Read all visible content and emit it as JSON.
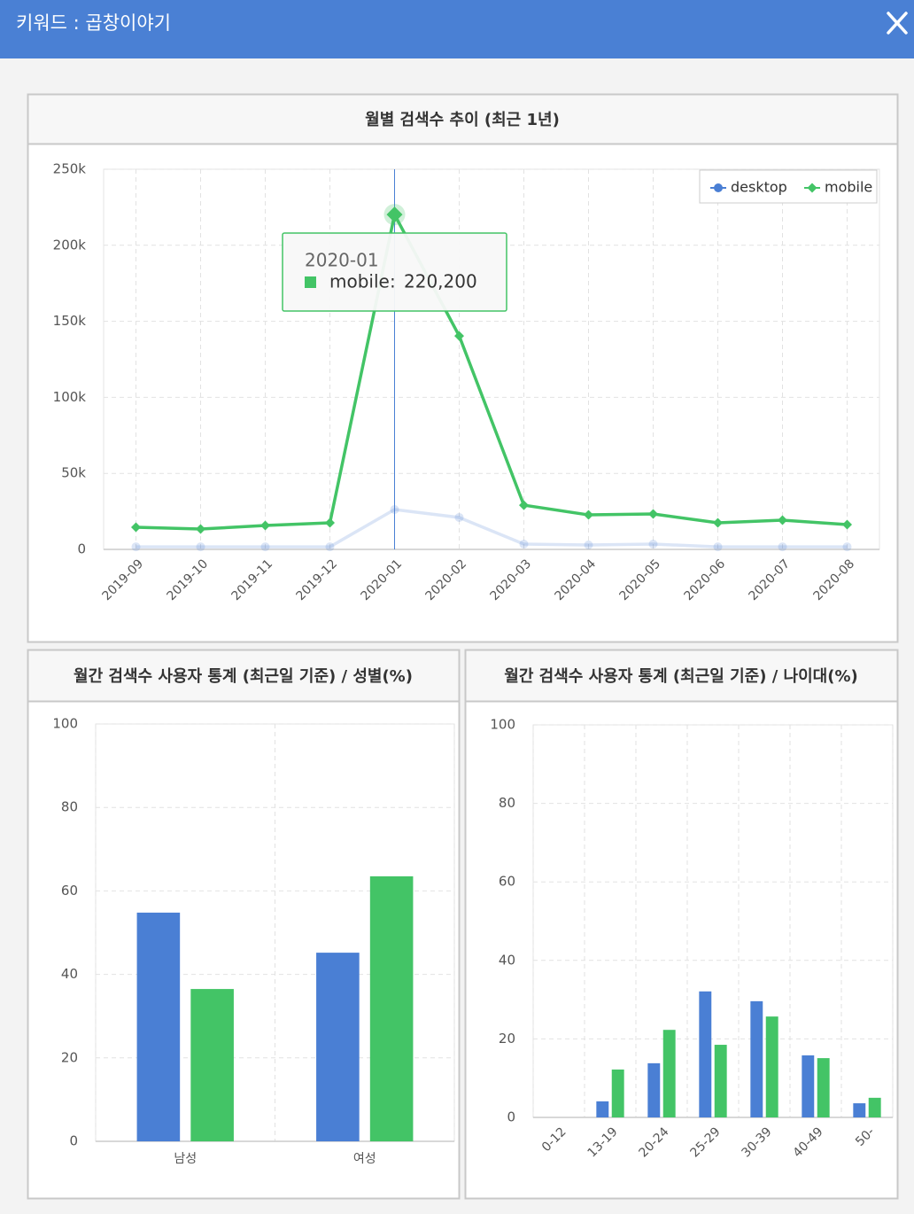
{
  "header": {
    "title": "키워드 : 곱창이야기"
  },
  "chart_data": [
    {
      "type": "line",
      "title": "월별 검색수 추이 (최근 1년)",
      "categories": [
        "2019-09",
        "2019-10",
        "2019-11",
        "2019-12",
        "2020-01",
        "2020-02",
        "2020-03",
        "2020-04",
        "2020-05",
        "2020-06",
        "2020-07",
        "2020-08"
      ],
      "series": [
        {
          "name": "desktop",
          "color": "#4a7fd4",
          "values": [
            1700,
            1700,
            1700,
            1700,
            26200,
            21000,
            3500,
            2900,
            3500,
            1700,
            1700,
            1700
          ]
        },
        {
          "name": "mobile",
          "color": "#43c466",
          "values": [
            14600,
            13400,
            15700,
            17500,
            220200,
            140400,
            29100,
            22700,
            23300,
            17500,
            19200,
            16300
          ]
        }
      ],
      "ylim": [
        0,
        250000
      ],
      "yticks": [
        0,
        {
          "value": 50000,
          "label": "50k"
        },
        {
          "value": 100000,
          "label": "100k"
        },
        {
          "value": 150000,
          "label": "150k"
        },
        {
          "value": 200000,
          "label": "200k"
        },
        {
          "value": 250000,
          "label": "250k"
        }
      ],
      "grid": true,
      "legend": "upper right",
      "tooltip": {
        "category": "2020-01",
        "series": "mobile",
        "separator": ":",
        "value_label": "220,200"
      }
    },
    {
      "type": "bar",
      "title": "월간 검색수 사용자 통계 (최근일 기준) / 성별(%)",
      "categories": [
        "남성",
        "여성"
      ],
      "series": [
        {
          "color": "#4a7fd4",
          "values": [
            54.8,
            45.2
          ]
        },
        {
          "color": "#43c466",
          "values": [
            36.5,
            63.5
          ]
        }
      ],
      "ylim": [
        0,
        100
      ],
      "yticks": [
        0,
        20,
        40,
        60,
        80,
        100
      ],
      "grid": true
    },
    {
      "type": "bar",
      "title": "월간 검색수 사용자 통계 (최근일 기준) / 나이대(%)",
      "categories": [
        "0-12",
        "13-19",
        "20-24",
        "25-29",
        "30-39",
        "40-49",
        "50-"
      ],
      "series": [
        {
          "color": "#4a7fd4",
          "values": [
            0,
            4.1,
            13.8,
            32.1,
            29.6,
            15.8,
            3.6
          ]
        },
        {
          "color": "#43c466",
          "values": [
            0,
            12.2,
            22.3,
            18.5,
            25.7,
            15.1,
            5.0
          ]
        }
      ],
      "ylim": [
        0,
        100
      ],
      "yticks": [
        0,
        20,
        40,
        60,
        80,
        100
      ],
      "grid": true
    }
  ]
}
